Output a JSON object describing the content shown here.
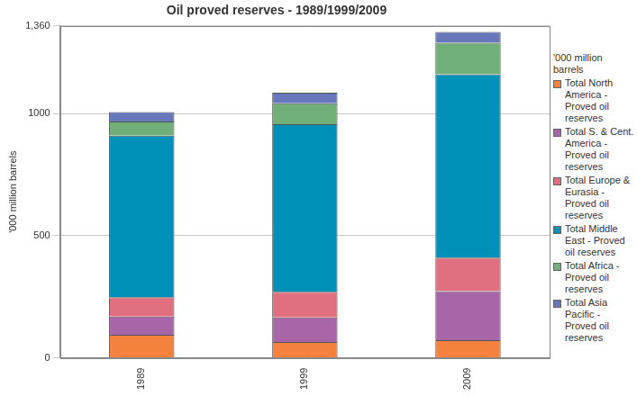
{
  "chart_data": {
    "type": "bar",
    "stacked": true,
    "title": "Oil proved reserves - 1989/1999/2009",
    "y_label": "'000 million barrels",
    "legend_title": "'000 million barrels",
    "legend": "right",
    "grid": true,
    "categories": [
      "1989",
      "1999",
      "2009"
    ],
    "series": [
      {
        "name": "Total North America - Proved oil reserves",
        "color": "#f5813f",
        "values": [
          94,
          65,
          72
        ]
      },
      {
        "name": "Total S. & Cent. America - Proved oil reserves",
        "color": "#a866a8",
        "values": [
          75,
          100,
          201
        ]
      },
      {
        "name": "Total Europe & Eurasia - Proved oil reserves",
        "color": "#e0707f",
        "values": [
          79,
          105,
          137
        ]
      },
      {
        "name": "Total Middle East - Proved oil reserves",
        "color": "#0090b8",
        "values": [
          662,
          687,
          752
        ]
      },
      {
        "name": "Total Africa - Proved oil reserves",
        "color": "#70b078",
        "values": [
          58,
          86,
          129
        ]
      },
      {
        "name": "Total Asia Pacific - Proved oil reserves",
        "color": "#6677bb",
        "values": [
          39,
          43,
          44
        ]
      }
    ],
    "ylim": [
      0,
      1360
    ],
    "yticks": [
      0,
      500,
      1000,
      {
        "value": 1360,
        "label": "1,360"
      }
    ]
  }
}
